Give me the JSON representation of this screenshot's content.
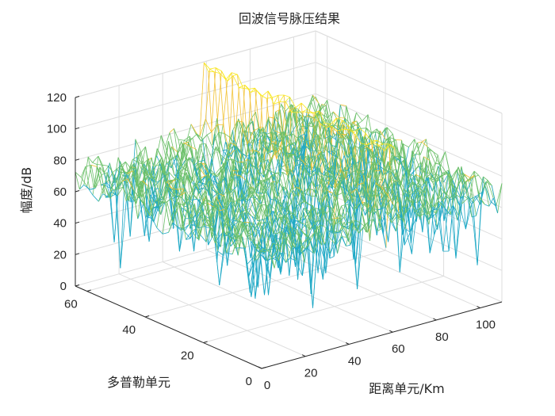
{
  "chart_data": {
    "type": "surface",
    "title": "回波信号脉压结果",
    "xlabel": "距离单元/Km",
    "ylabel": "多普勒单元",
    "zlabel": "幅度/dB",
    "xlim": [
      0,
      110
    ],
    "ylim": [
      0,
      64
    ],
    "zlim": [
      0,
      120
    ],
    "xticks": [
      "0",
      "20",
      "40",
      "60",
      "80",
      "100"
    ],
    "yticks": [
      "0",
      "20",
      "40",
      "60"
    ],
    "zticks": [
      "0",
      "20",
      "40",
      "60",
      "80",
      "100",
      "120"
    ],
    "grid": true,
    "colormap": "parula",
    "noise_floor_db": 70,
    "noise_spread_db": 20,
    "target_range_cell": 60,
    "target_peak_db": 120,
    "colors": {
      "axis": "#262626",
      "grid": "#dedede",
      "low": "#1fa9c6",
      "mid": "#6cc06a",
      "high": "#f2c233",
      "peak": "#f9e91e"
    }
  }
}
